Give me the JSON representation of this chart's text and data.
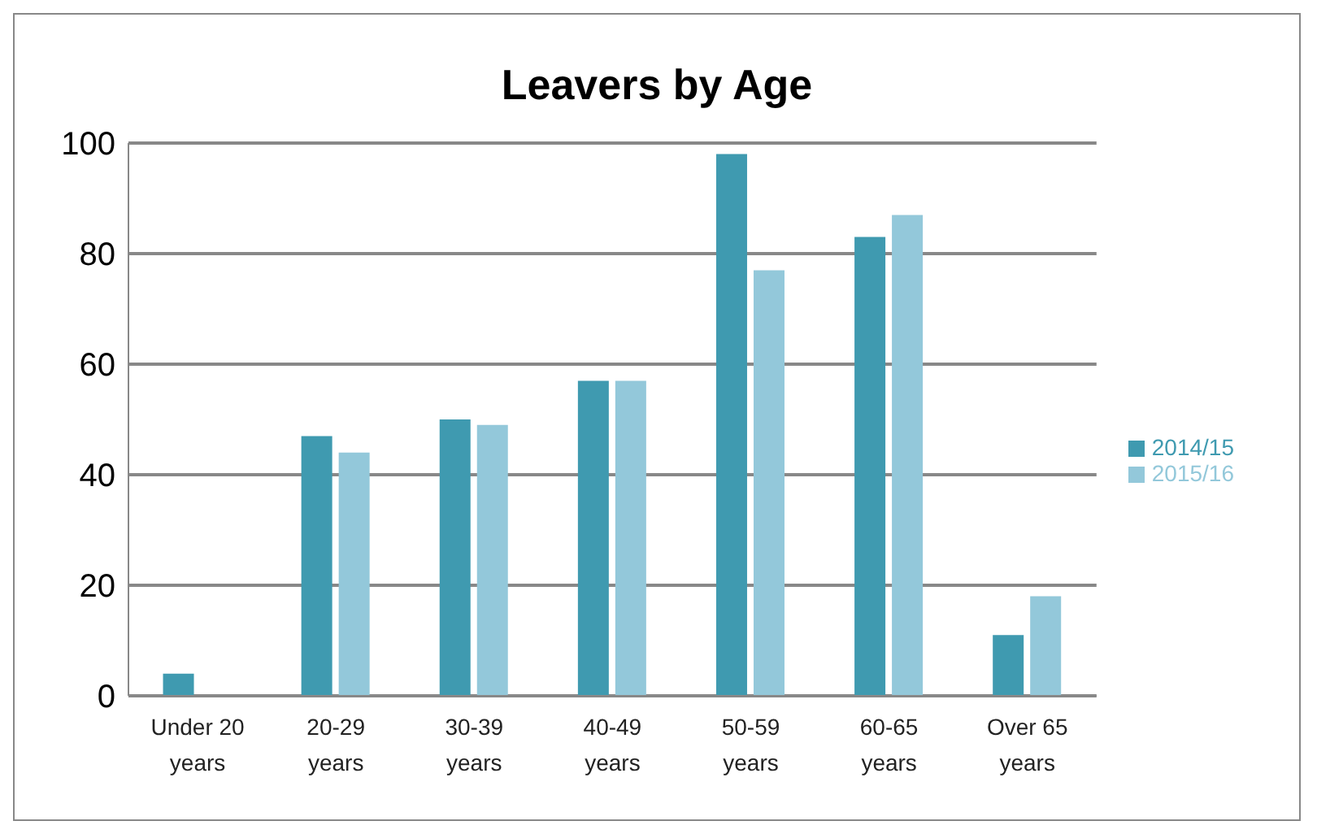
{
  "chart_data": {
    "type": "bar",
    "title": "Leavers by Age",
    "categories": [
      "Under 20 years",
      "20-29 years",
      "30-39 years",
      "40-49 years",
      "50-59 years",
      "60-65 years",
      "Over 65 years"
    ],
    "series": [
      {
        "name": "2014/15",
        "color": "#3f9ab0",
        "values": [
          4,
          47,
          50,
          57,
          98,
          83,
          11
        ]
      },
      {
        "name": "2015/16",
        "color": "#93c8da",
        "values": [
          0,
          44,
          49,
          57,
          77,
          87,
          18
        ]
      }
    ],
    "ylim": [
      0,
      100
    ],
    "yticks": [
      0,
      20,
      40,
      60,
      80,
      100
    ],
    "grid": "y",
    "legend": "right"
  }
}
